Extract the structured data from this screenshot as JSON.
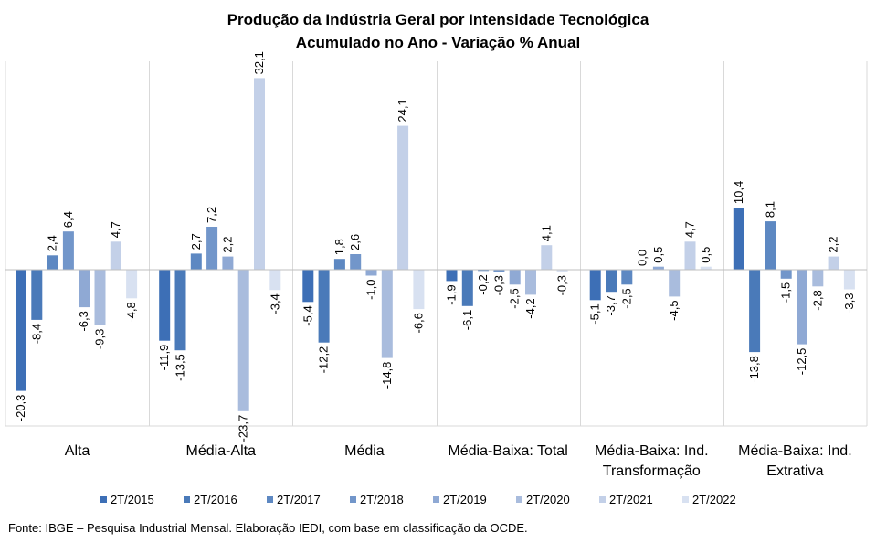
{
  "chart_data": {
    "type": "bar",
    "title": "Produção da Indústria Geral por Intensidade Tecnológica",
    "subtitle": "Acumulado no Ano - Variação % Anual",
    "categories": [
      [
        "Alta"
      ],
      [
        "Média-Alta"
      ],
      [
        "Média"
      ],
      [
        "Média-Baixa: Total"
      ],
      [
        "Média-Baixa: Ind.",
        "Transformação"
      ],
      [
        "Média-Baixa: Ind.",
        "Extrativa"
      ]
    ],
    "series": [
      {
        "name": "2T/2015",
        "color": "#3d6fb6",
        "values": [
          -20.3,
          -11.9,
          -5.4,
          -1.9,
          -5.1,
          10.4
        ]
      },
      {
        "name": "2T/2016",
        "color": "#4a7ab9",
        "values": [
          -8.4,
          -13.5,
          -12.2,
          -6.1,
          -3.7,
          -13.8
        ]
      },
      {
        "name": "2T/2017",
        "color": "#5d88c2",
        "values": [
          2.4,
          2.7,
          1.8,
          -0.2,
          -2.5,
          8.1
        ]
      },
      {
        "name": "2T/2018",
        "color": "#7296ca",
        "values": [
          6.4,
          7.2,
          2.6,
          -0.3,
          0.0,
          -1.5
        ]
      },
      {
        "name": "2T/2019",
        "color": "#8fa9d4",
        "values": [
          -6.3,
          2.2,
          -1.0,
          -2.5,
          0.5,
          -12.5
        ]
      },
      {
        "name": "2T/2020",
        "color": "#a9bcdd",
        "values": [
          -9.3,
          -23.7,
          -14.8,
          -4.2,
          -4.5,
          -2.8
        ]
      },
      {
        "name": "2T/2021",
        "color": "#c3d0e8",
        "values": [
          4.7,
          32.1,
          24.1,
          4.1,
          4.7,
          2.2
        ]
      },
      {
        "name": "2T/2022",
        "color": "#d8e1f1",
        "values": [
          -4.8,
          -3.4,
          -6.6,
          -0.3,
          0.5,
          -3.3
        ]
      }
    ],
    "value_labels": [
      [
        "-20,3",
        "-8,4",
        "2,4",
        "6,4",
        "-6,3",
        "-9,3",
        "4,7",
        "-4,8"
      ],
      [
        "-11,9",
        "-13,5",
        "2,7",
        "7,2",
        "2,2",
        "-23,7",
        "32,1",
        "-3,4"
      ],
      [
        "-5,4",
        "-12,2",
        "1,8",
        "2,6",
        "-1,0",
        "-14,8",
        "24,1",
        "-6,6"
      ],
      [
        "-1,9",
        "-6,1",
        "-0,2",
        "-0,3",
        "-2,5",
        "-4,2",
        "4,1",
        "-0,3"
      ],
      [
        "-5,1",
        "-3,7",
        "-2,5",
        "0,0",
        "0,5",
        "-4,5",
        "4,7",
        "0,5"
      ],
      [
        "10,4",
        "-13,8",
        "8,1",
        "-1,5",
        "-12,5",
        "-2,8",
        "2,2",
        "-3,3"
      ]
    ],
    "ylim": [
      -26,
      34
    ],
    "grid": false,
    "legend": "bottom",
    "source": "Fonte: IBGE – Pesquisa Industrial Mensal. Elaboração IEDI, com base em classificação da OCDE."
  }
}
